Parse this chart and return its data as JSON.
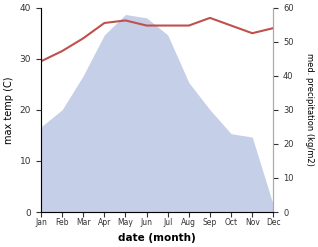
{
  "months": [
    "Jan",
    "Feb",
    "Mar",
    "Apr",
    "May",
    "Jun",
    "Jul",
    "Aug",
    "Sep",
    "Oct",
    "Nov",
    "Dec"
  ],
  "temp": [
    29.5,
    31.5,
    34.0,
    37.0,
    37.5,
    36.5,
    36.5,
    36.5,
    38.0,
    36.5,
    35.0,
    36.0
  ],
  "precip": [
    25.0,
    30.0,
    40.0,
    52.0,
    58.0,
    57.0,
    52.0,
    38.0,
    30.0,
    23.0,
    22.0,
    2.0
  ],
  "temp_color": "#c0504d",
  "precip_fill_color": "#c5cfe8",
  "ylim_left": [
    0,
    40
  ],
  "ylim_right": [
    0,
    60
  ],
  "yticks_left": [
    0,
    10,
    20,
    30,
    40
  ],
  "yticks_right": [
    0,
    10,
    20,
    30,
    40,
    50,
    60
  ],
  "xlabel": "date (month)",
  "ylabel_left": "max temp (C)",
  "ylabel_right": "med. precipitation (kg/m2)",
  "bg_color": "#ffffff"
}
